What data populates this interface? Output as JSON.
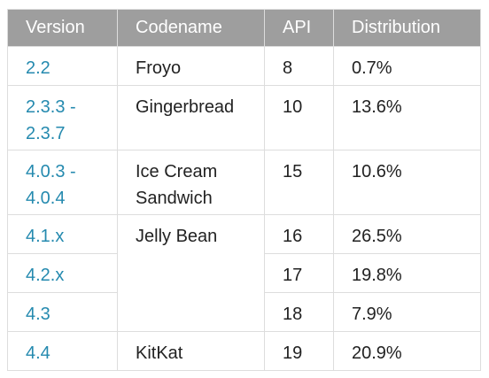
{
  "table": {
    "headers": [
      "Version",
      "Codename",
      "API",
      "Distribution"
    ],
    "rows": [
      {
        "version": "2.2",
        "codename": "Froyo",
        "api": "8",
        "distribution": "0.7%"
      },
      {
        "version": "2.3.3 -\n2.3.7",
        "codename": "Gingerbread",
        "api": "10",
        "distribution": "13.6%"
      },
      {
        "version": "4.0.3 -\n4.0.4",
        "codename": "Ice Cream\nSandwich",
        "api": "15",
        "distribution": "10.6%"
      },
      {
        "version": "4.1.x",
        "codename": "Jelly Bean",
        "api": "16",
        "distribution": "26.5%"
      },
      {
        "version": "4.2.x",
        "codename": "",
        "api": "17",
        "distribution": "19.8%"
      },
      {
        "version": "4.3",
        "codename": "",
        "api": "18",
        "distribution": "7.9%"
      },
      {
        "version": "4.4",
        "codename": "KitKat",
        "api": "19",
        "distribution": "20.9%"
      }
    ]
  }
}
